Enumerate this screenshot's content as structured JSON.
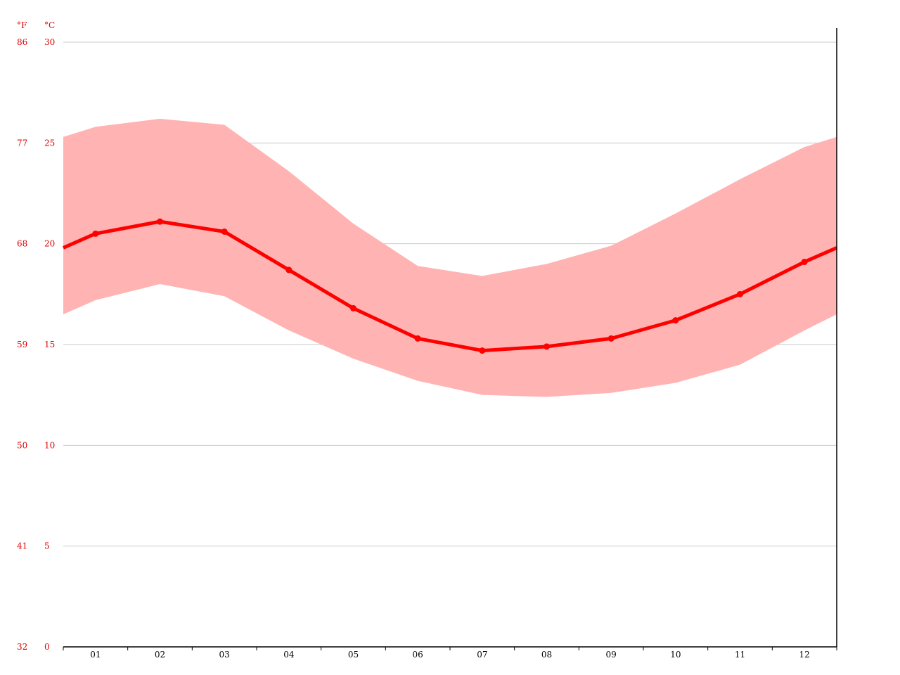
{
  "chart_data": {
    "type": "line",
    "title": "",
    "xlabel": "",
    "ylabel": "",
    "categories": [
      "01",
      "02",
      "03",
      "04",
      "05",
      "06",
      "07",
      "08",
      "09",
      "10",
      "11",
      "12"
    ],
    "series": [
      {
        "values": [
          20.5,
          21.1,
          20.6,
          18.7,
          16.8,
          15.3,
          14.7,
          14.9,
          15.3,
          16.2,
          17.5,
          19.1
        ]
      }
    ],
    "band": {
      "low": [
        17.2,
        18.0,
        17.4,
        15.7,
        14.3,
        13.2,
        12.5,
        12.4,
        12.6,
        13.1,
        14.0,
        15.7
      ],
      "high": [
        25.8,
        26.2,
        25.9,
        23.6,
        21.0,
        18.9,
        18.4,
        19.0,
        19.9,
        21.5,
        23.2,
        24.8
      ]
    },
    "edge_values": {
      "line": 19.8,
      "low": 16.5,
      "high": 25.3
    },
    "ylim": [
      0,
      30
    ],
    "y_ticks_c": [
      "0",
      "5",
      "10",
      "15",
      "20",
      "25",
      "30"
    ],
    "y_ticks_f": [
      "32",
      "41",
      "50",
      "59",
      "68",
      "77",
      "86"
    ],
    "unit_c": "°C",
    "unit_f": "°F",
    "grid": true,
    "legend": "none",
    "colors": {
      "line": "#ff0000",
      "band": "#ffb3b3",
      "grid": "#c8c8c8",
      "axis_text": "#e00000"
    }
  }
}
